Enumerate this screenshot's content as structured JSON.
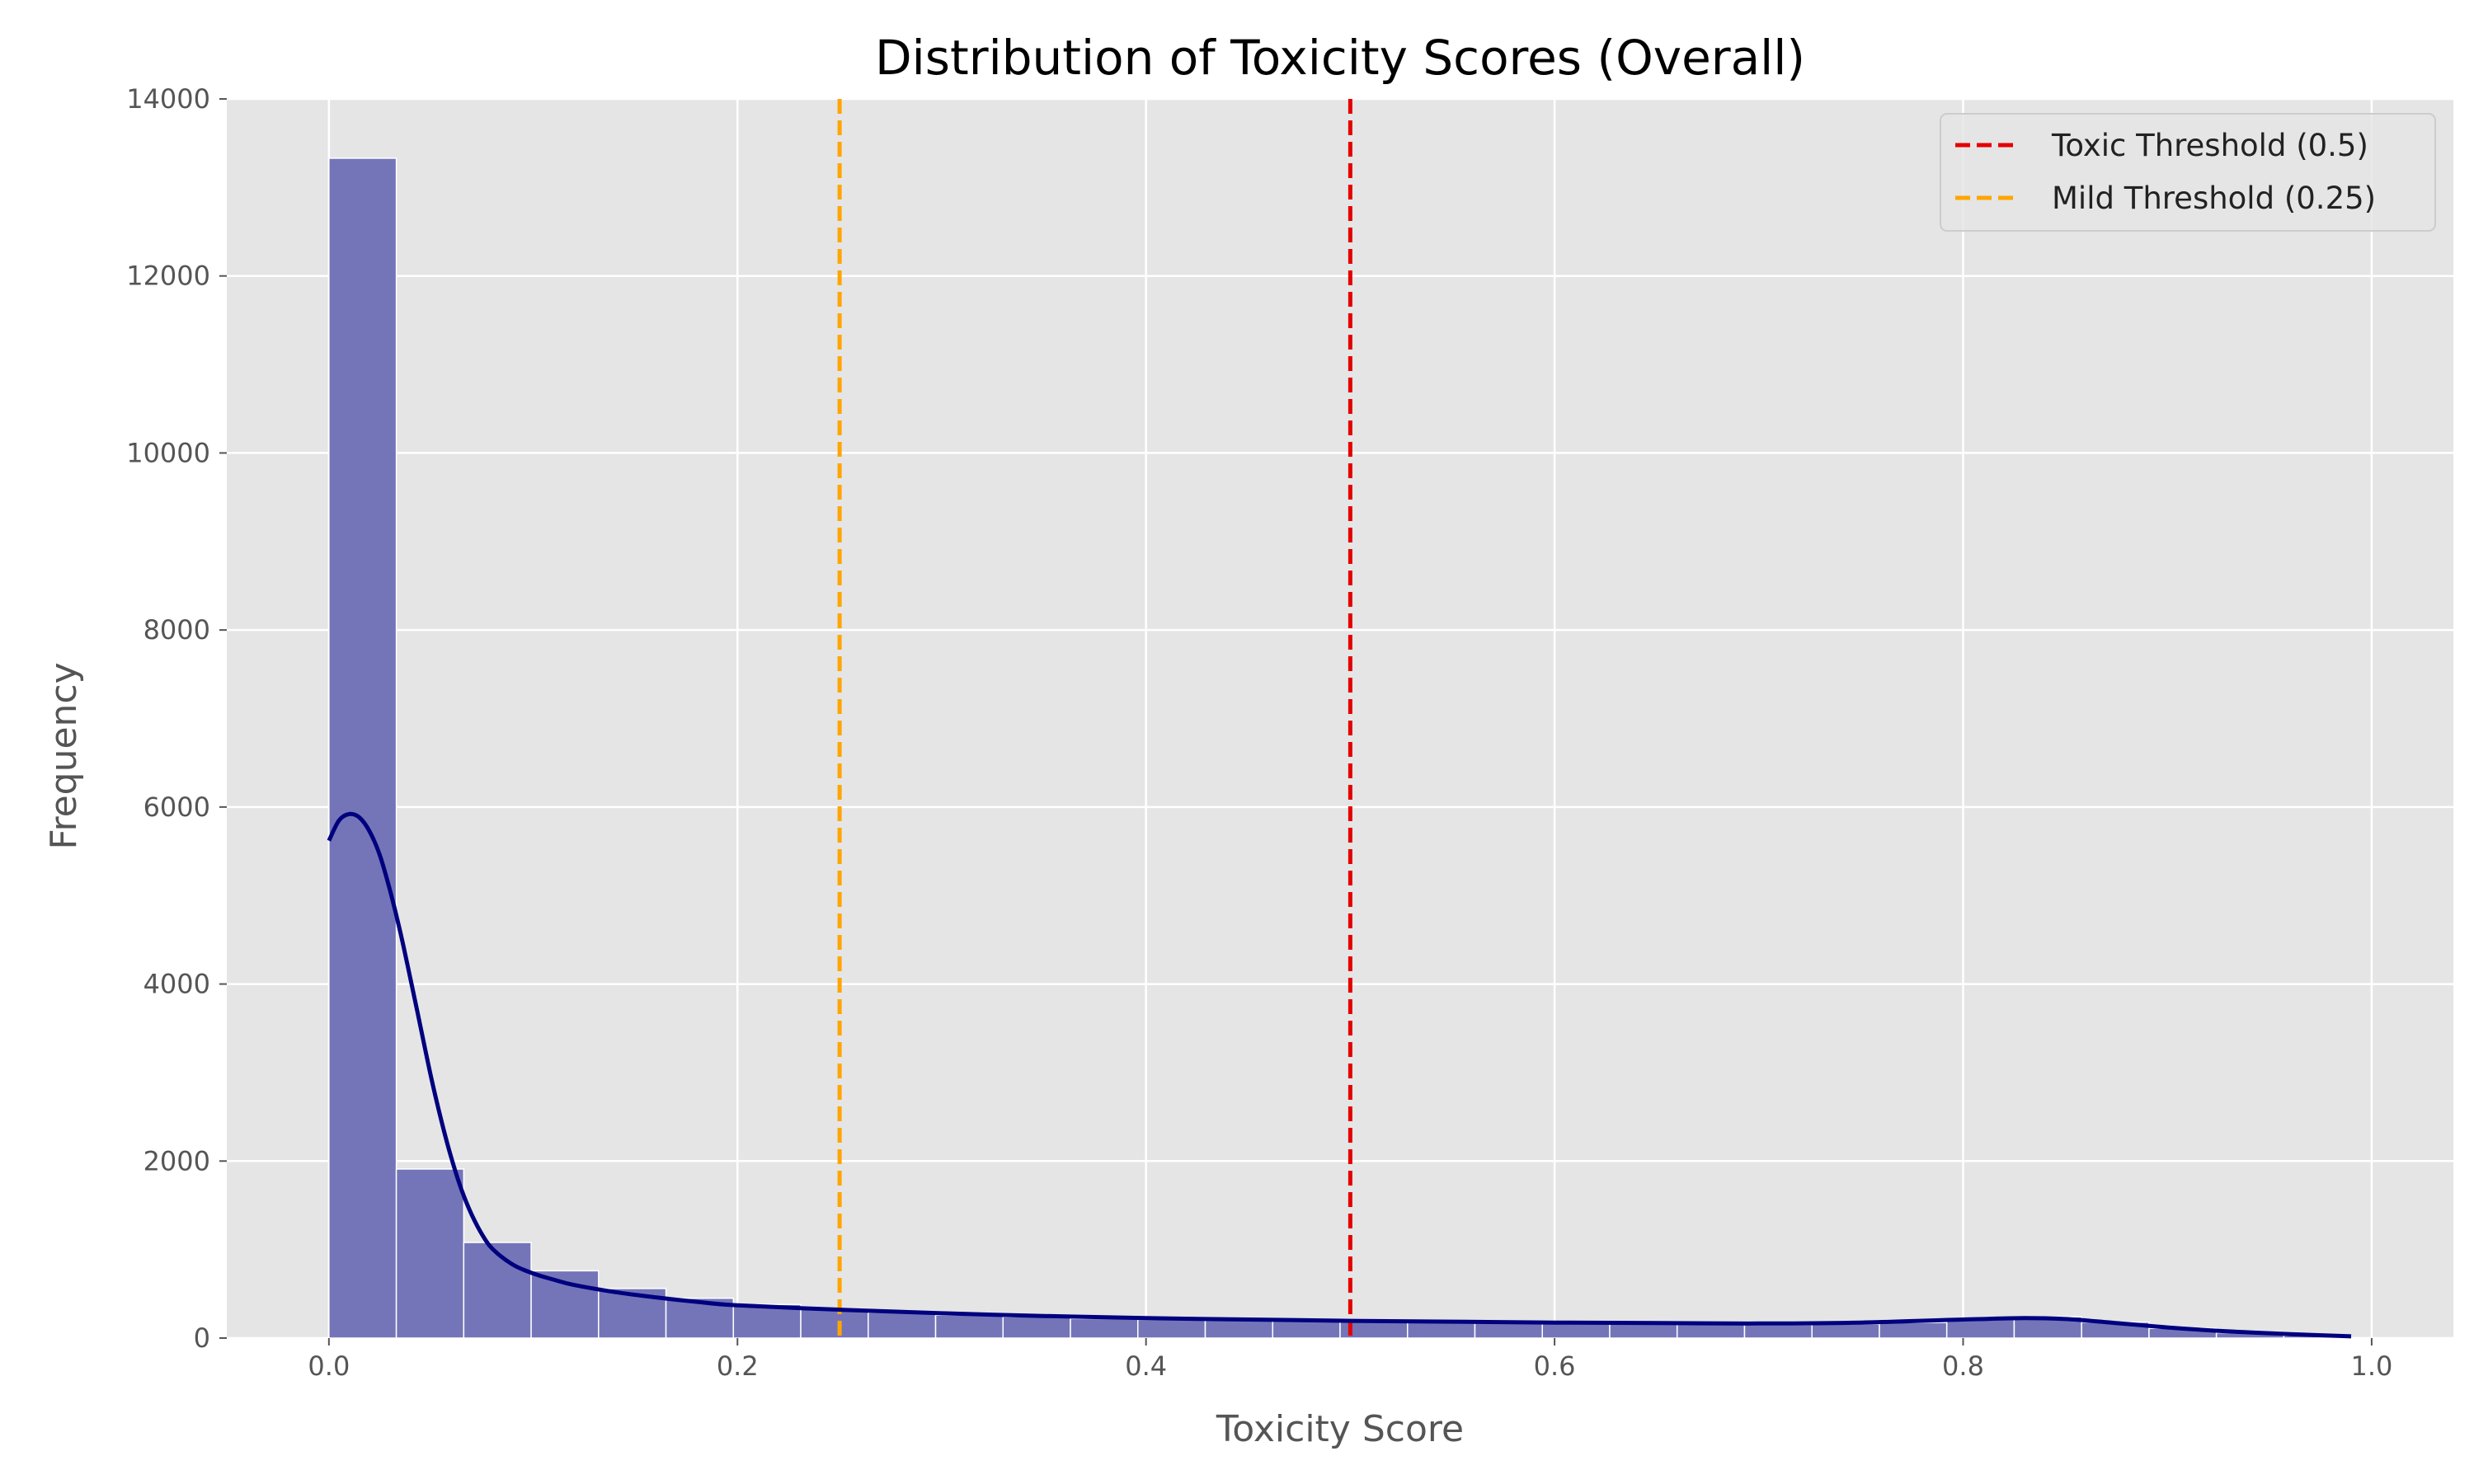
{
  "chart_data": {
    "type": "bar",
    "title": "Distribution of Toxicity Scores (Overall)",
    "xlabel": "Toxicity Score",
    "ylabel": "Frequency",
    "xlim": [
      -0.05,
      1.04
    ],
    "ylim": [
      0,
      14000
    ],
    "x_ticks": [
      0.0,
      0.2,
      0.4,
      0.6,
      0.8,
      1.0
    ],
    "x_tick_labels": [
      "0.0",
      "0.2",
      "0.4",
      "0.6",
      "0.8",
      "1.0"
    ],
    "y_ticks": [
      0,
      2000,
      4000,
      6000,
      8000,
      10000,
      12000,
      14000
    ],
    "y_tick_labels": [
      "0",
      "2000",
      "4000",
      "6000",
      "8000",
      "10000",
      "12000",
      "14000"
    ],
    "grid": true,
    "background_color": "#e5e5e5",
    "bar_color": "#7475b8",
    "kde_color": "#00007f",
    "bin_width": 0.033,
    "bins": [
      {
        "start": 0.0,
        "value": 13330
      },
      {
        "start": 0.033,
        "value": 1910
      },
      {
        "start": 0.066,
        "value": 1080
      },
      {
        "start": 0.099,
        "value": 760
      },
      {
        "start": 0.132,
        "value": 560
      },
      {
        "start": 0.165,
        "value": 450
      },
      {
        "start": 0.198,
        "value": 380
      },
      {
        "start": 0.231,
        "value": 330
      },
      {
        "start": 0.264,
        "value": 290
      },
      {
        "start": 0.297,
        "value": 260
      },
      {
        "start": 0.33,
        "value": 240
      },
      {
        "start": 0.363,
        "value": 220
      },
      {
        "start": 0.396,
        "value": 210
      },
      {
        "start": 0.429,
        "value": 200
      },
      {
        "start": 0.462,
        "value": 190
      },
      {
        "start": 0.495,
        "value": 180
      },
      {
        "start": 0.528,
        "value": 175
      },
      {
        "start": 0.561,
        "value": 170
      },
      {
        "start": 0.594,
        "value": 165
      },
      {
        "start": 0.627,
        "value": 160
      },
      {
        "start": 0.66,
        "value": 155
      },
      {
        "start": 0.693,
        "value": 150
      },
      {
        "start": 0.726,
        "value": 160
      },
      {
        "start": 0.759,
        "value": 175
      },
      {
        "start": 0.792,
        "value": 210
      },
      {
        "start": 0.825,
        "value": 240
      },
      {
        "start": 0.858,
        "value": 180
      },
      {
        "start": 0.891,
        "value": 110
      },
      {
        "start": 0.924,
        "value": 60
      },
      {
        "start": 0.957,
        "value": 30
      }
    ],
    "kde": {
      "x": [
        0.0,
        0.005,
        0.01,
        0.015,
        0.02,
        0.025,
        0.03,
        0.035,
        0.04,
        0.045,
        0.05,
        0.055,
        0.06,
        0.065,
        0.07,
        0.075,
        0.08,
        0.09,
        0.1,
        0.11,
        0.12,
        0.14,
        0.16,
        0.18,
        0.2,
        0.25,
        0.3,
        0.35,
        0.4,
        0.45,
        0.5,
        0.55,
        0.6,
        0.65,
        0.7,
        0.75,
        0.8,
        0.83,
        0.85,
        0.87,
        0.9,
        0.93,
        0.96,
        0.99
      ],
      "y": [
        5620,
        5850,
        5920,
        5880,
        5720,
        5450,
        5050,
        4580,
        4050,
        3500,
        2950,
        2460,
        2030,
        1670,
        1390,
        1170,
        1010,
        830,
        730,
        660,
        600,
        520,
        460,
        410,
        370,
        320,
        280,
        250,
        225,
        210,
        195,
        185,
        175,
        170,
        165,
        175,
        210,
        225,
        215,
        180,
        120,
        75,
        45,
        20
      ]
    },
    "thresholds": [
      {
        "name": "Toxic Threshold (0.5)",
        "x": 0.5,
        "color": "#e50000"
      },
      {
        "name": "Mild Threshold (0.25)",
        "x": 0.25,
        "color": "#ffa500"
      }
    ],
    "legend_position": "top-right"
  }
}
